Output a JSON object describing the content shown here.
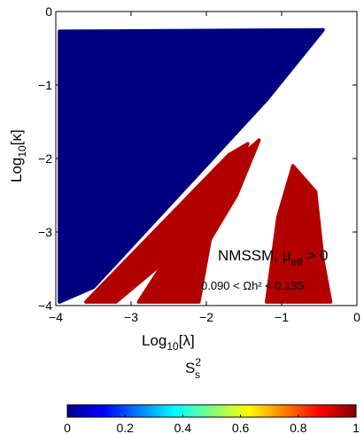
{
  "chart_data": {
    "type": "scatter",
    "xlabel": "Log",
    "xlabel_sub": "10",
    "xlabel_arg": "[λ]",
    "ylabel": "Log",
    "ylabel_sub": "10",
    "ylabel_arg": "[κ]",
    "xlim": [
      -4,
      0
    ],
    "ylim": [
      -4,
      0
    ],
    "xticks": [
      "-4",
      "-3",
      "-2",
      "-1",
      "0"
    ],
    "yticks": [
      "0",
      "-1",
      "-2",
      "-3",
      "-4"
    ],
    "annotation_model": "NMSSM, μ",
    "annotation_model_sub": "eff",
    "annotation_model_rel": " > 0",
    "annotation_range": "0.090 < Ωh² < 0.135",
    "colorbar_label": "S",
    "colorbar_label_sup": "2",
    "colorbar_label_sub": "s",
    "colorbar_ticks": [
      "0",
      "0.2",
      "0.4",
      "0.6",
      "0.8",
      "1"
    ],
    "colorbar_range": [
      0,
      1
    ],
    "colormap": "jet",
    "colors": {
      "low": "#00008f",
      "high": "#800000"
    },
    "regions": [
      {
        "name": "allowed band",
        "color_value": 0.0,
        "polygon": [
          [
            -3.95,
            -0.27
          ],
          [
            -0.45,
            -0.25
          ],
          [
            -1.2,
            -1.2
          ],
          [
            -2.1,
            -2.2
          ],
          [
            -3.5,
            -3.75
          ],
          [
            -3.95,
            -3.95
          ]
        ]
      },
      {
        "name": "upper edge band",
        "color_value": 0.95,
        "polygon": [
          [
            -3.6,
            -3.95
          ],
          [
            -1.7,
            -1.95
          ],
          [
            -1.45,
            -1.8
          ],
          [
            -1.75,
            -2.45
          ],
          [
            -2.5,
            -3.35
          ],
          [
            -3.2,
            -3.95
          ]
        ]
      },
      {
        "name": "middle band",
        "color_value": 0.95,
        "polygon": [
          [
            -2.9,
            -3.95
          ],
          [
            -1.8,
            -2.2
          ],
          [
            -1.3,
            -1.75
          ],
          [
            -1.6,
            -2.5
          ],
          [
            -1.95,
            -3.1
          ],
          [
            -2.1,
            -3.95
          ]
        ]
      },
      {
        "name": "lower right cluster",
        "color_value": 0.95,
        "polygon": [
          [
            -1.2,
            -3.95
          ],
          [
            -1.05,
            -2.8
          ],
          [
            -0.85,
            -2.1
          ],
          [
            -0.55,
            -2.45
          ],
          [
            -0.45,
            -3.4
          ],
          [
            -0.35,
            -3.95
          ]
        ]
      }
    ]
  }
}
